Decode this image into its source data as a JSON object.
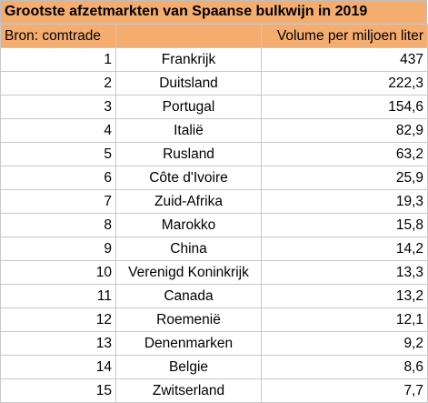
{
  "title": "Grootste afzetmarkten van Spaanse bulkwijn in 2019",
  "header": {
    "source": "Bron: comtrade",
    "country": "",
    "volume": "Volume per miljoen liter"
  },
  "colors": {
    "header_fill": "#f5ad6f",
    "grid": "#c8c8c8"
  },
  "chart_data": {
    "type": "table",
    "title": "Grootste afzetmarkten van Spaanse bulkwijn in 2019",
    "columns": [
      "Bron: comtrade",
      "",
      "Volume per miljoen liter"
    ],
    "rows": [
      {
        "rank": "1",
        "country": "Frankrijk",
        "volume": "437"
      },
      {
        "rank": "2",
        "country": "Duitsland",
        "volume": "222,3"
      },
      {
        "rank": "3",
        "country": "Portugal",
        "volume": "154,6"
      },
      {
        "rank": "4",
        "country": "Italië",
        "volume": "82,9"
      },
      {
        "rank": "5",
        "country": "Rusland",
        "volume": "63,2"
      },
      {
        "rank": "6",
        "country": "Côte d'Ivoire",
        "volume": "25,9"
      },
      {
        "rank": "7",
        "country": "Zuid-Afrika",
        "volume": "19,3"
      },
      {
        "rank": "8",
        "country": "Marokko",
        "volume": "15,8"
      },
      {
        "rank": "9",
        "country": "China",
        "volume": "14,2"
      },
      {
        "rank": "10",
        "country": "Verenigd Koninkrijk",
        "volume": "13,3"
      },
      {
        "rank": "11",
        "country": "Canada",
        "volume": "13,2"
      },
      {
        "rank": "12",
        "country": "Roemenië",
        "volume": "12,1"
      },
      {
        "rank": "13",
        "country": "Denenmarken",
        "volume": "9,2"
      },
      {
        "rank": "14",
        "country": "Belgie",
        "volume": "8,6"
      },
      {
        "rank": "15",
        "country": "Zwitserland",
        "volume": "7,7"
      }
    ]
  }
}
